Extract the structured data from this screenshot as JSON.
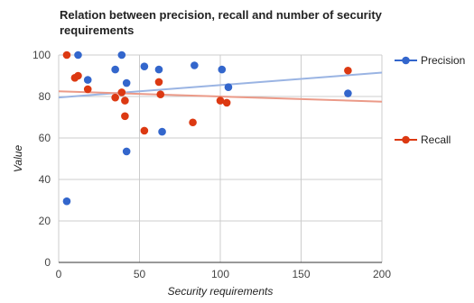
{
  "chart_data": {
    "type": "scatter",
    "title": "Relation between precision, recall and number of security requirements",
    "xlabel": "Security requirements",
    "ylabel": "Value",
    "xlim": [
      0,
      200
    ],
    "ylim": [
      0,
      100
    ],
    "xticks": [
      0,
      50,
      100,
      150,
      200
    ],
    "yticks": [
      0,
      20,
      40,
      60,
      80,
      100
    ],
    "grid": true,
    "legend_position": "right",
    "series": [
      {
        "name": "Precision",
        "color": "#3366cc",
        "trendline_color": "#9ab4e3",
        "trendline": [
          [
            0,
            79.5
          ],
          [
            200,
            91.5
          ]
        ],
        "points": [
          [
            5,
            29.5
          ],
          [
            12,
            100
          ],
          [
            18,
            88
          ],
          [
            35,
            93
          ],
          [
            39,
            100
          ],
          [
            42,
            53.5
          ],
          [
            42,
            86.5
          ],
          [
            53,
            94.5
          ],
          [
            62,
            93
          ],
          [
            64,
            63
          ],
          [
            84,
            95
          ],
          [
            101,
            93
          ],
          [
            105,
            84.5
          ],
          [
            179,
            81.5
          ]
        ]
      },
      {
        "name": "Recall",
        "color": "#dc3912",
        "trendline_color": "#eb9a88",
        "trendline": [
          [
            0,
            82.5
          ],
          [
            200,
            77.5
          ]
        ],
        "points": [
          [
            5,
            100
          ],
          [
            10,
            89
          ],
          [
            12,
            90
          ],
          [
            18,
            83.5
          ],
          [
            35,
            79.5
          ],
          [
            39,
            82
          ],
          [
            41,
            70.5
          ],
          [
            41,
            78
          ],
          [
            53,
            63.5
          ],
          [
            62,
            87
          ],
          [
            63,
            81
          ],
          [
            83,
            67.5
          ],
          [
            100,
            78
          ],
          [
            104,
            77
          ],
          [
            179,
            92.5
          ]
        ]
      }
    ]
  }
}
